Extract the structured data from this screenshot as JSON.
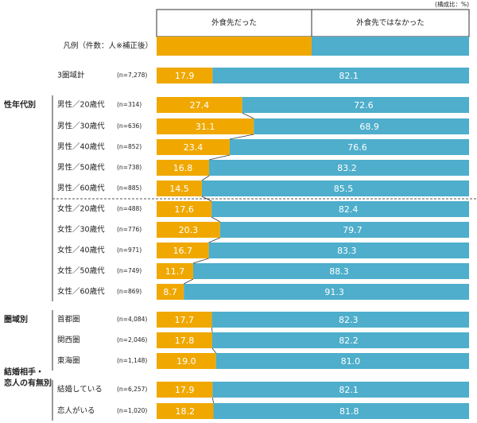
{
  "chart_data": {
    "type": "stacked-bar-100",
    "unit_note": "(構成比：%)",
    "legend_title": "凡例（件数：人※補正後）",
    "group_labels": [
      "性年代別",
      "圏域別",
      "結婚相手・恋人の有無別"
    ],
    "categories": [
      "3圏域計",
      "男性／20歳代",
      "男性／30歳代",
      "男性／40歳代",
      "男性／50歳代",
      "男性／60歳代",
      "女性／20歳代",
      "女性／30歳代",
      "女性／40歳代",
      "女性／50歳代",
      "女性／60歳代",
      "首都圏",
      "関西圏",
      "東海圏",
      "結婚している",
      "恋人がいる"
    ],
    "sample_sizes": [
      "(n=7,278)",
      "(n=314)",
      "(n=636)",
      "(n=852)",
      "(n=738)",
      "(n=885)",
      "(n=488)",
      "(n=776)",
      "(n=971)",
      "(n=749)",
      "(n=869)",
      "(n=4,084)",
      "(n=2,046)",
      "(n=1,148)",
      "(n=6,257)",
      "(n=1,020)"
    ],
    "xlim": [
      0,
      100
    ],
    "series": [
      {
        "name": "外食先だった",
        "color": "#f0a800",
        "values": [
          17.9,
          27.4,
          31.1,
          23.4,
          16.8,
          14.5,
          17.6,
          20.3,
          16.7,
          11.7,
          8.7,
          17.7,
          17.8,
          19.0,
          17.9,
          18.2
        ],
        "value_labels": [
          "17.9",
          "27.4",
          "31.1",
          "23.4",
          "16.8",
          "14.5",
          "17.6",
          "20.3",
          "16.7",
          "11.7",
          "8.7",
          "17.7",
          "17.8",
          "19.0",
          "17.9",
          "18.2"
        ]
      },
      {
        "name": "外食先ではなかった",
        "color": "#4eaecb",
        "values": [
          82.1,
          72.6,
          68.9,
          76.6,
          83.2,
          85.5,
          82.4,
          79.7,
          83.3,
          88.3,
          91.3,
          82.3,
          82.2,
          81.0,
          82.1,
          81.8
        ],
        "value_labels": [
          "82.1",
          "72.6",
          "68.9",
          "76.6",
          "83.2",
          "85.5",
          "82.4",
          "79.7",
          "83.3",
          "88.3",
          "91.3",
          "82.3",
          "82.2",
          "81.0",
          "82.1",
          "81.8"
        ]
      }
    ]
  }
}
